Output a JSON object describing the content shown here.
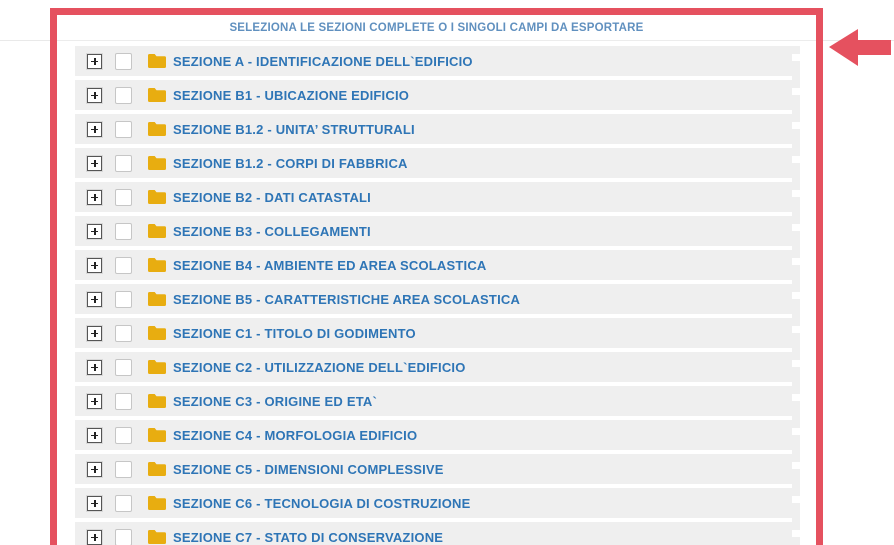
{
  "panel": {
    "title": "SELEZIONA LE SEZIONI COMPLETE O I SINGOLI CAMPI DA ESPORTARE"
  },
  "colors": {
    "accent_red": "#e5515f",
    "row_background": "#efefef",
    "row_text_blue": "#2e75b6",
    "title_blue": "#6090bf",
    "folder_yellow": "#e8ad10"
  },
  "icons": {
    "arrow": "arrow-left-icon",
    "folder": "folder-icon",
    "expand": "expand-plus-icon"
  },
  "sections": [
    {
      "label": "SEZIONE A - IDENTIFICAZIONE DELL`EDIFICIO",
      "checked": false,
      "expanded": false
    },
    {
      "label": "SEZIONE B1 - UBICAZIONE EDIFICIO",
      "checked": false,
      "expanded": false
    },
    {
      "label": "SEZIONE B1.2 - UNITA’ STRUTTURALI",
      "checked": false,
      "expanded": false
    },
    {
      "label": "SEZIONE B1.2 - CORPI DI FABBRICA",
      "checked": false,
      "expanded": false
    },
    {
      "label": "SEZIONE B2 - DATI CATASTALI",
      "checked": false,
      "expanded": false
    },
    {
      "label": "SEZIONE B3 - COLLEGAMENTI",
      "checked": false,
      "expanded": false
    },
    {
      "label": "SEZIONE B4 - AMBIENTE ED AREA SCOLASTICA",
      "checked": false,
      "expanded": false
    },
    {
      "label": "SEZIONE B5 - CARATTERISTICHE AREA SCOLASTICA",
      "checked": false,
      "expanded": false
    },
    {
      "label": "SEZIONE C1 - TITOLO DI GODIMENTO",
      "checked": false,
      "expanded": false
    },
    {
      "label": "SEZIONE C2 - UTILIZZAZIONE DELL`EDIFICIO",
      "checked": false,
      "expanded": false
    },
    {
      "label": "SEZIONE C3 - ORIGINE ED ETA`",
      "checked": false,
      "expanded": false
    },
    {
      "label": "SEZIONE C4 - MORFOLOGIA EDIFICIO",
      "checked": false,
      "expanded": false
    },
    {
      "label": "SEZIONE C5 - DIMENSIONI COMPLESSIVE",
      "checked": false,
      "expanded": false
    },
    {
      "label": "SEZIONE C6 - TECNOLOGIA DI COSTRUZIONE",
      "checked": false,
      "expanded": false
    },
    {
      "label": "SEZIONE C7 - STATO DI CONSERVAZIONE",
      "checked": false,
      "expanded": false
    }
  ]
}
